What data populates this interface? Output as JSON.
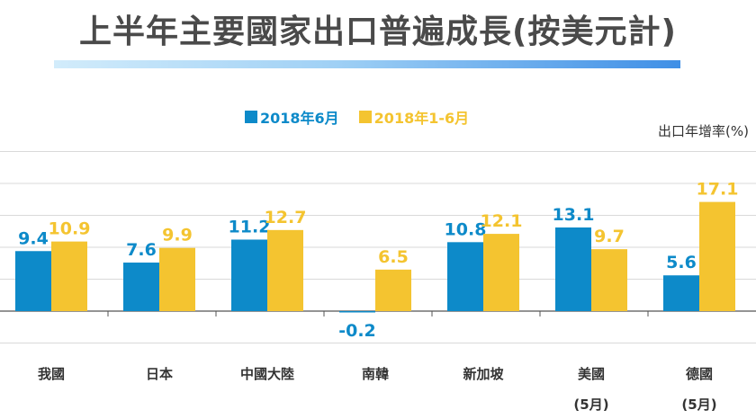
{
  "title": "上半年主要國家出口普遍成長(按美元計)",
  "unit_label": "出口年增率(%)",
  "colors": {
    "series1": "#0d8ac9",
    "series2": "#f4c430",
    "grid": "#d9d9d9",
    "axis": "#555555"
  },
  "chart_data": {
    "type": "bar",
    "title": "上半年主要國家出口普遍成長(按美元計)",
    "ylabel": "出口年增率(%)",
    "categories": [
      "我國",
      "日本",
      "中國大陸",
      "南韓",
      "新加坡",
      "美國",
      "德國"
    ],
    "category_notes": [
      "",
      "",
      "",
      "",
      "",
      "(5月)",
      "(5月)"
    ],
    "series": [
      {
        "name": "2018年6月",
        "values": [
          9.4,
          7.6,
          11.2,
          -0.2,
          10.8,
          13.1,
          5.6
        ]
      },
      {
        "name": "2018年1-6月",
        "values": [
          10.9,
          9.9,
          12.7,
          6.5,
          12.1,
          9.7,
          17.1
        ]
      }
    ],
    "ylim": [
      -5,
      25
    ],
    "grid": true,
    "legend": "top"
  }
}
